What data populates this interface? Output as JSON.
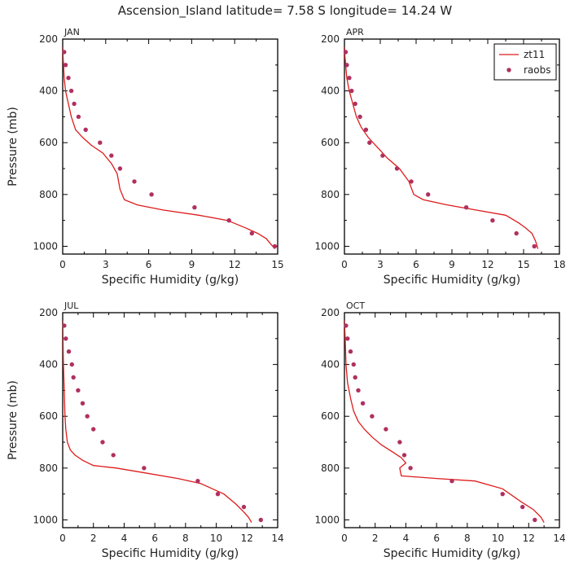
{
  "figure": {
    "title": "Ascension_Island   latitude=  7.58 S  longitude=  14.24 W"
  },
  "colors": {
    "model_line": "#dd1c1c",
    "obs_marker": "#b03060",
    "axis": "#000000",
    "text": "#222222"
  },
  "legend": {
    "entries": [
      "zt11",
      "raobs"
    ],
    "placement": "top-right of APR panel"
  },
  "chart_data": [
    {
      "type": "line",
      "panel": "JAN",
      "xlabel": "Specific Humidity (g/kg)",
      "ylabel": "Pressure (mb)",
      "xlim": [
        0,
        15
      ],
      "ylim": [
        200,
        1030
      ],
      "y_inverted": true,
      "xticks": [
        0,
        3,
        6,
        9,
        12,
        15
      ],
      "yticks": [
        200,
        400,
        600,
        800,
        1000
      ],
      "grid": false,
      "series": [
        {
          "name": "zt11",
          "style": "line",
          "x": [
            0.01,
            0.03,
            0.1,
            0.2,
            0.4,
            0.6,
            0.9,
            1.4,
            2.0,
            2.8,
            3.4,
            3.8,
            4.0,
            4.3,
            5.2,
            7.0,
            9.5,
            11.5,
            12.8,
            13.6,
            14.2,
            14.5,
            14.8
          ],
          "y": [
            230,
            270,
            350,
            400,
            450,
            500,
            550,
            580,
            610,
            640,
            680,
            720,
            780,
            820,
            840,
            860,
            880,
            900,
            930,
            950,
            970,
            990,
            1010
          ]
        },
        {
          "name": "raobs",
          "style": "markers",
          "x": [
            0.1,
            0.2,
            0.4,
            0.6,
            0.8,
            1.1,
            1.6,
            2.6,
            3.4,
            4.0,
            5.0,
            6.2,
            9.2,
            11.6,
            13.2,
            14.8
          ],
          "y": [
            250,
            300,
            350,
            400,
            450,
            500,
            550,
            600,
            650,
            700,
            750,
            800,
            850,
            900,
            950,
            1000
          ]
        }
      ]
    },
    {
      "type": "line",
      "panel": "APR",
      "xlabel": "Specific Humidity (g/kg)",
      "ylabel": "",
      "xlim": [
        0,
        18
      ],
      "ylim": [
        200,
        1030
      ],
      "y_inverted": true,
      "xticks": [
        0,
        3,
        6,
        9,
        12,
        15,
        18
      ],
      "yticks": [
        200,
        400,
        600,
        800,
        1000
      ],
      "grid": false,
      "series": [
        {
          "name": "zt11",
          "style": "line",
          "x": [
            0.01,
            0.05,
            0.1,
            0.2,
            0.4,
            0.7,
            1.0,
            1.4,
            2.0,
            2.8,
            3.6,
            4.6,
            5.4,
            5.8,
            6.6,
            8.6,
            11.0,
            13.5,
            14.6,
            15.2,
            15.7,
            16.0,
            16.2
          ],
          "y": [
            230,
            270,
            300,
            350,
            400,
            450,
            500,
            540,
            580,
            620,
            660,
            700,
            750,
            800,
            820,
            840,
            860,
            880,
            910,
            930,
            950,
            980,
            1010
          ]
        },
        {
          "name": "raobs",
          "style": "markers",
          "x": [
            0.1,
            0.2,
            0.4,
            0.6,
            0.9,
            1.3,
            1.8,
            2.1,
            3.2,
            4.4,
            5.6,
            7.0,
            10.2,
            12.4,
            14.4,
            15.9
          ],
          "y": [
            250,
            300,
            350,
            400,
            450,
            500,
            550,
            600,
            650,
            700,
            750,
            800,
            850,
            900,
            950,
            1000
          ]
        }
      ]
    },
    {
      "type": "line",
      "panel": "JUL",
      "xlabel": "Specific Humidity (g/kg)",
      "ylabel": "Pressure (mb)",
      "xlim": [
        0,
        14
      ],
      "ylim": [
        200,
        1030
      ],
      "y_inverted": true,
      "xticks": [
        0,
        2,
        4,
        6,
        8,
        10,
        12,
        14
      ],
      "yticks": [
        200,
        400,
        600,
        800,
        1000
      ],
      "grid": false,
      "series": [
        {
          "name": "zt11",
          "style": "line",
          "x": [
            0.0,
            0.02,
            0.05,
            0.1,
            0.15,
            0.2,
            0.3,
            0.5,
            0.8,
            1.3,
            2.0,
            3.5,
            5.5,
            7.5,
            9.0,
            10.5,
            11.3,
            11.8,
            12.1,
            12.3
          ],
          "y": [
            230,
            300,
            400,
            500,
            600,
            650,
            700,
            730,
            750,
            770,
            790,
            800,
            820,
            840,
            860,
            900,
            940,
            970,
            990,
            1010
          ]
        },
        {
          "name": "raobs",
          "style": "markers",
          "x": [
            0.1,
            0.2,
            0.4,
            0.6,
            0.7,
            1.0,
            1.3,
            1.6,
            2.0,
            2.6,
            3.3,
            5.3,
            8.8,
            10.1,
            11.8,
            12.9
          ],
          "y": [
            250,
            300,
            350,
            400,
            450,
            500,
            550,
            600,
            650,
            700,
            750,
            800,
            850,
            900,
            950,
            1000
          ]
        }
      ]
    },
    {
      "type": "line",
      "panel": "OCT",
      "xlabel": "Specific Humidity (g/kg)",
      "ylabel": "",
      "xlim": [
        0,
        14
      ],
      "ylim": [
        200,
        1030
      ],
      "y_inverted": true,
      "xticks": [
        0,
        2,
        4,
        6,
        8,
        10,
        12,
        14
      ],
      "yticks": [
        200,
        400,
        600,
        800,
        1000
      ],
      "grid": false,
      "series": [
        {
          "name": "zt11",
          "style": "line",
          "x": [
            0.0,
            0.05,
            0.1,
            0.2,
            0.4,
            0.6,
            0.9,
            1.3,
            1.8,
            2.4,
            3.2,
            3.7,
            4.0,
            3.6,
            3.7,
            6.0,
            8.5,
            10.3,
            11.5,
            12.3,
            12.8,
            13.0
          ],
          "y": [
            230,
            300,
            400,
            470,
            530,
            580,
            620,
            650,
            680,
            710,
            740,
            760,
            780,
            800,
            830,
            840,
            850,
            880,
            930,
            960,
            990,
            1010
          ]
        },
        {
          "name": "raobs",
          "style": "markers",
          "x": [
            0.1,
            0.2,
            0.4,
            0.6,
            0.7,
            0.9,
            1.2,
            1.8,
            2.7,
            3.6,
            3.9,
            4.3,
            7.0,
            10.3,
            11.6,
            12.4
          ],
          "y": [
            250,
            300,
            350,
            400,
            450,
            500,
            550,
            600,
            650,
            700,
            750,
            800,
            850,
            900,
            950,
            1000
          ]
        }
      ]
    }
  ]
}
